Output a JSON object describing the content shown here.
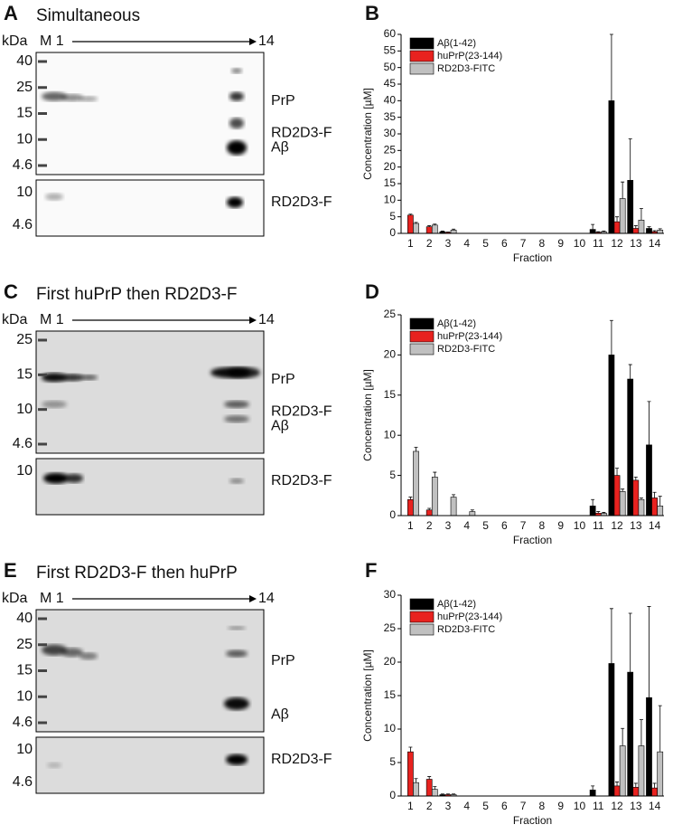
{
  "gels": [
    {
      "panel": "A",
      "title": "Simultaneous",
      "kda": "kDa",
      "lane_start": "M 1",
      "lane_end": "14",
      "markers": [
        "40",
        "25",
        "15",
        "10",
        "4.6"
      ],
      "bottom_markers": [
        "10",
        "4.6"
      ],
      "labels": [
        "PrP",
        "RD2D3-F",
        "Aβ"
      ],
      "bottom_labels": [
        "RD2D3-F"
      ]
    },
    {
      "panel": "C",
      "title": "First huPrP then RD2D3-F",
      "kda": "kDa",
      "lane_start": "M 1",
      "lane_end": "14",
      "markers": [
        "25",
        "15",
        "10",
        "4.6"
      ],
      "bottom_markers": [
        "10"
      ],
      "labels": [
        "PrP",
        "RD2D3-F",
        "Aβ"
      ],
      "bottom_labels": [
        "RD2D3-F"
      ]
    },
    {
      "panel": "E",
      "title": "First RD2D3-F then huPrP",
      "kda": "kDa",
      "lane_start": "M 1",
      "lane_end": "14",
      "markers": [
        "40",
        "25",
        "15",
        "10",
        "4.6"
      ],
      "bottom_markers": [
        "10",
        "4.6"
      ],
      "labels": [
        "PrP",
        "Aβ"
      ],
      "bottom_labels": [
        "RD2D3-F"
      ]
    }
  ],
  "chart_data": [
    {
      "type": "bar",
      "panel": "B",
      "x_label": "Fraction",
      "y_label": "Concentration [µM]",
      "categories": [
        "1",
        "2",
        "3",
        "4",
        "5",
        "6",
        "7",
        "8",
        "9",
        "10",
        "11",
        "12",
        "13",
        "14"
      ],
      "ylim": [
        0,
        60
      ],
      "yticks": [
        0,
        5,
        10,
        15,
        20,
        25,
        30,
        35,
        40,
        45,
        50,
        55,
        60
      ],
      "series": [
        {
          "name": "Aβ(1-42)",
          "color": "#000000",
          "values": [
            0,
            0,
            0.5,
            0,
            0,
            0,
            0,
            0,
            0,
            0,
            1.2,
            40,
            16,
            1.5
          ],
          "errors": [
            0,
            0,
            0.2,
            0,
            0,
            0,
            0,
            0,
            0,
            0,
            1.5,
            20,
            12.5,
            0.5
          ]
        },
        {
          "name": "huPrP(23-144)",
          "color": "#e8221f",
          "values": [
            5.5,
            2,
            0.3,
            0,
            0,
            0,
            0,
            0,
            0,
            0,
            0.3,
            3.5,
            1.5,
            0.5
          ],
          "errors": [
            0.3,
            0.3,
            0.1,
            0,
            0,
            0,
            0,
            0,
            0,
            0,
            0.2,
            1.5,
            0.8,
            0.3
          ]
        },
        {
          "name": "RD2D3-FITC",
          "color": "#c0c0c0",
          "values": [
            3,
            2.5,
            1,
            0,
            0,
            0,
            0,
            0,
            0,
            0,
            0.5,
            10.5,
            4,
            1
          ],
          "errors": [
            0.3,
            0.3,
            0.3,
            0,
            0,
            0,
            0,
            0,
            0,
            0,
            0.2,
            5,
            3.5,
            0.4
          ]
        }
      ]
    },
    {
      "type": "bar",
      "panel": "D",
      "x_label": "Fraction",
      "y_label": "Concentration [µM]",
      "categories": [
        "1",
        "2",
        "3",
        "4",
        "5",
        "6",
        "7",
        "8",
        "9",
        "10",
        "11",
        "12",
        "13",
        "14"
      ],
      "ylim": [
        0,
        25
      ],
      "yticks": [
        0,
        5,
        10,
        15,
        20,
        25
      ],
      "series": [
        {
          "name": "Aβ(1-42)",
          "color": "#000000",
          "values": [
            0,
            0,
            0,
            0,
            0,
            0,
            0,
            0,
            0,
            0,
            1.2,
            20,
            17,
            8.8
          ],
          "errors": [
            0,
            0,
            0,
            0,
            0,
            0,
            0,
            0,
            0,
            0,
            0.8,
            4.3,
            1.8,
            5.4
          ]
        },
        {
          "name": "huPrP(23-144)",
          "color": "#e8221f",
          "values": [
            2,
            0.7,
            0,
            0,
            0,
            0,
            0,
            0,
            0,
            0,
            0.3,
            5,
            4.4,
            2.2
          ],
          "errors": [
            0.3,
            0.2,
            0,
            0,
            0,
            0,
            0,
            0,
            0,
            0,
            0.2,
            0.9,
            0.4,
            0.7
          ]
        },
        {
          "name": "RD2D3-FITC",
          "color": "#c0c0c0",
          "values": [
            8,
            4.8,
            2.3,
            0.5,
            0,
            0,
            0,
            0,
            0,
            0,
            0.3,
            3,
            2,
            1.2
          ],
          "errors": [
            0.5,
            0.6,
            0.3,
            0.2,
            0,
            0,
            0,
            0,
            0,
            0,
            0.1,
            0.3,
            0.2,
            1.2
          ]
        }
      ]
    },
    {
      "type": "bar",
      "panel": "F",
      "x_label": "Fraction",
      "y_label": "Concentration [µM]",
      "categories": [
        "1",
        "2",
        "3",
        "4",
        "5",
        "6",
        "7",
        "8",
        "9",
        "10",
        "11",
        "12",
        "13",
        "14"
      ],
      "ylim": [
        0,
        30
      ],
      "yticks": [
        0,
        5,
        10,
        15,
        20,
        25,
        30
      ],
      "series": [
        {
          "name": "Aβ(1-42)",
          "color": "#000000",
          "values": [
            0,
            0,
            0.2,
            0,
            0,
            0,
            0,
            0,
            0,
            0,
            0.9,
            19.8,
            18.5,
            14.7
          ],
          "errors": [
            0,
            0,
            0.1,
            0,
            0,
            0,
            0,
            0,
            0,
            0,
            0.6,
            8.2,
            8.8,
            13.6
          ]
        },
        {
          "name": "huPrP(23-144)",
          "color": "#e8221f",
          "values": [
            6.6,
            2.5,
            0.2,
            0,
            0,
            0,
            0,
            0,
            0,
            0,
            0,
            1.5,
            1.3,
            1.2
          ],
          "errors": [
            0.7,
            0.4,
            0.1,
            0,
            0,
            0,
            0,
            0,
            0,
            0,
            0,
            0.6,
            0.6,
            0.7
          ]
        },
        {
          "name": "RD2D3-FITC",
          "color": "#c0c0c0",
          "values": [
            2,
            1,
            0.2,
            0,
            0,
            0,
            0,
            0,
            0,
            0,
            0,
            7.5,
            7.5,
            6.6
          ],
          "errors": [
            0.6,
            0.4,
            0.1,
            0,
            0,
            0,
            0,
            0,
            0,
            0,
            0,
            2.6,
            3.9,
            6.9
          ]
        }
      ]
    }
  ]
}
